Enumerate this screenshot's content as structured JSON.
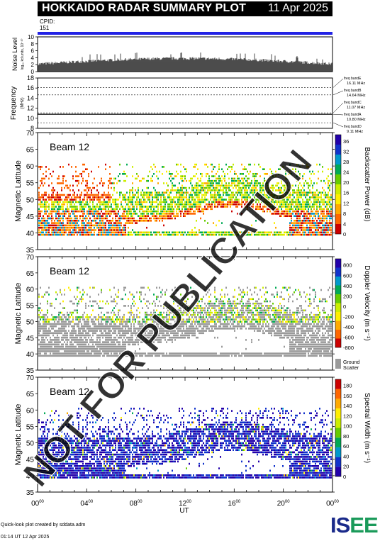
{
  "header": {
    "title": "HOKKAIDO RADAR SUMMARY PLOT",
    "date": "11 Apr 2025"
  },
  "cpid": {
    "label": "CPID:",
    "value": "151"
  },
  "noise_panel": {
    "ylabel": "Noise Level",
    "sublabel": "log₁₀ kd units, 10⁻²⁰",
    "yticks": [
      "0",
      "2",
      "4",
      "6",
      "8",
      "10"
    ]
  },
  "frequency_panel": {
    "ylabel": "Frequency",
    "unit": "(MHz)",
    "yticks": [
      "8",
      "10",
      "12",
      "14",
      "16",
      "18"
    ],
    "bands": [
      {
        "name": "freq bandE",
        "value": "16.11 MHz"
      },
      {
        "name": "freq bandB",
        "value": "14.64 MHz"
      },
      {
        "name": "freq bandC",
        "value": "11.07 MHz"
      },
      {
        "name": "freq bandA",
        "value": "10.80 MHz"
      },
      {
        "name": "freq bandD",
        "value": "9.11 MHz"
      }
    ]
  },
  "panels": [
    {
      "beam": "Beam 12",
      "ylabel": "Magnetic Latitude",
      "cbar_label": "Backscatter Power (dB)",
      "cbar_ticks": [
        "0",
        "4",
        "8",
        "12",
        "16",
        "20",
        "24",
        "28",
        "32",
        "36"
      ],
      "cbar_colors": [
        "#cc0000",
        "#ff6600",
        "#ffaa00",
        "#ffee00",
        "#ccee00",
        "#66cc00",
        "#00aa55",
        "#0099cc",
        "#1133cc",
        "#2200aa"
      ]
    },
    {
      "beam": "Beam 12",
      "ylabel": "Magnetic Latitude",
      "cbar_label": "Doppler Velocity (m s⁻¹)",
      "cbar_ticks": [
        "-800",
        "-600",
        "-400",
        "-200",
        "0",
        "200",
        "400",
        "600",
        "800"
      ],
      "cbar_colors": [
        "#cc0000",
        "#ff6600",
        "#ffaa00",
        "#ffee00",
        "#ccee00",
        "#66cc00",
        "#00aa55",
        "#0099cc",
        "#1133cc",
        "#2200aa"
      ],
      "ground_scatter": "Ground Scatter"
    },
    {
      "beam": "Beam 12",
      "ylabel": "Magnetic Latitude",
      "cbar_label": "Spectral Width (m s⁻¹)",
      "cbar_ticks": [
        "0",
        "20",
        "40",
        "60",
        "80",
        "100",
        "120",
        "140",
        "160",
        "180"
      ],
      "cbar_colors": [
        "#2200aa",
        "#1133cc",
        "#0099cc",
        "#00aa55",
        "#66cc00",
        "#ccee00",
        "#ffee00",
        "#ffaa00",
        "#ff6600",
        "#cc0000"
      ]
    }
  ],
  "lat_ticks": [
    "35",
    "40",
    "45",
    "50",
    "55",
    "60",
    "65",
    "70"
  ],
  "time_ticks": [
    "00",
    "04",
    "08",
    "12",
    "16",
    "20",
    "00"
  ],
  "xlabel": "UT",
  "watermark": "NOT FOR PUBLICATION",
  "footer": {
    "line1": "Quick-look plot created by sddata.adm",
    "line2": "01:14 UT 12 Apr 2025"
  },
  "logo": "ISEE",
  "chart_data": {
    "type": "heatmap",
    "x_axis": {
      "label": "UT",
      "range_hours": [
        0,
        24
      ],
      "ticks": [
        "00",
        "04",
        "08",
        "12",
        "16",
        "20",
        "00"
      ]
    },
    "noise_level": {
      "ylim": [
        0,
        10
      ]
    },
    "frequency_bands_mhz": [
      16.11,
      14.64,
      11.07,
      10.8,
      9.11
    ],
    "frequency_ylim": [
      8,
      18
    ],
    "lat_ylim": [
      35,
      70
    ],
    "panels": [
      "Backscatter Power (dB)",
      "Doppler Velocity (m s⁻¹)",
      "Spectral Width (m s⁻¹)"
    ]
  }
}
